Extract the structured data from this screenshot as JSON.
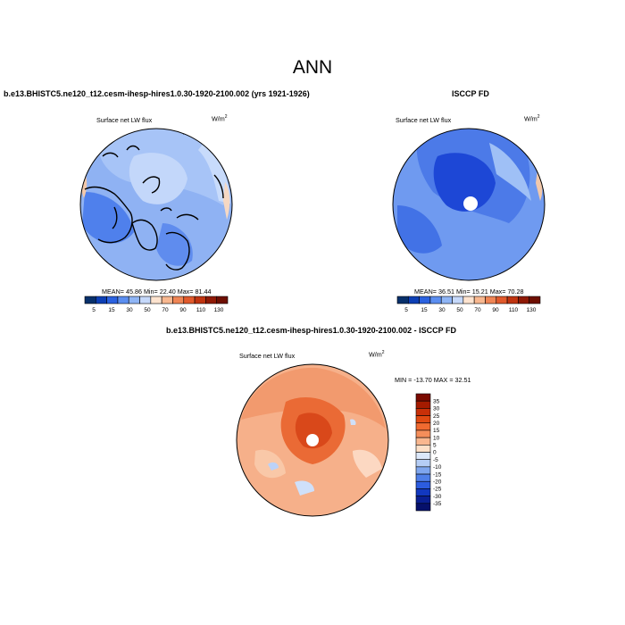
{
  "main_title": "ANN",
  "panels": [
    {
      "title": "b.e13.BHISTC5.ne120_t12.cesm-ihesp-hires1.0.30-1920-2100.002 (yrs 1921-1926)",
      "variable": "Surface net LW flux",
      "units_base": "W/m",
      "units_exp": "2",
      "stats": "MEAN=  45.86  Min=  22.40  Max=  81.44"
    },
    {
      "title": "ISCCP FD",
      "variable": "Surface net LW flux",
      "units_base": "W/m",
      "units_exp": "2",
      "stats": "MEAN=  36.51  Min=  15.21  Max=  70.28"
    },
    {
      "title": "b.e13.BHISTC5.ne120_t12.cesm-ihesp-hires1.0.30-1920-2100.002 - ISCCP FD",
      "variable": "Surface net LW flux",
      "units_base": "W/m",
      "units_exp": "2",
      "stats": "MIN = -13.70 MAX =  32.51"
    }
  ],
  "colorbar_abs": {
    "labels": [
      "5",
      "15",
      "30",
      "50",
      "70",
      "90",
      "110",
      "130"
    ],
    "colors": [
      "#08306b",
      "#0d3fb5",
      "#2b62e0",
      "#5b8ef0",
      "#8fb5f5",
      "#c5d8fa",
      "#fde3cf",
      "#f8b890",
      "#ef8555",
      "#e15a2c",
      "#c03410",
      "#8f1a06",
      "#6e0f02"
    ]
  },
  "colorbar_diff": {
    "labels": [
      "35",
      "30",
      "25",
      "20",
      "15",
      "10",
      "5",
      "0",
      "-5",
      "-10",
      "-15",
      "-20",
      "-25",
      "-30",
      "-35"
    ],
    "colors": [
      "#7a0a00",
      "#a51b00",
      "#c83008",
      "#e04a12",
      "#f06a30",
      "#f58e5a",
      "#f9b78f",
      "#fde0c8",
      "#dce8fa",
      "#b5cdf5",
      "#7fa6ee",
      "#4f7fe8",
      "#2c5ce0",
      "#1238c0",
      "#0a1f93",
      "#06106b"
    ]
  }
}
